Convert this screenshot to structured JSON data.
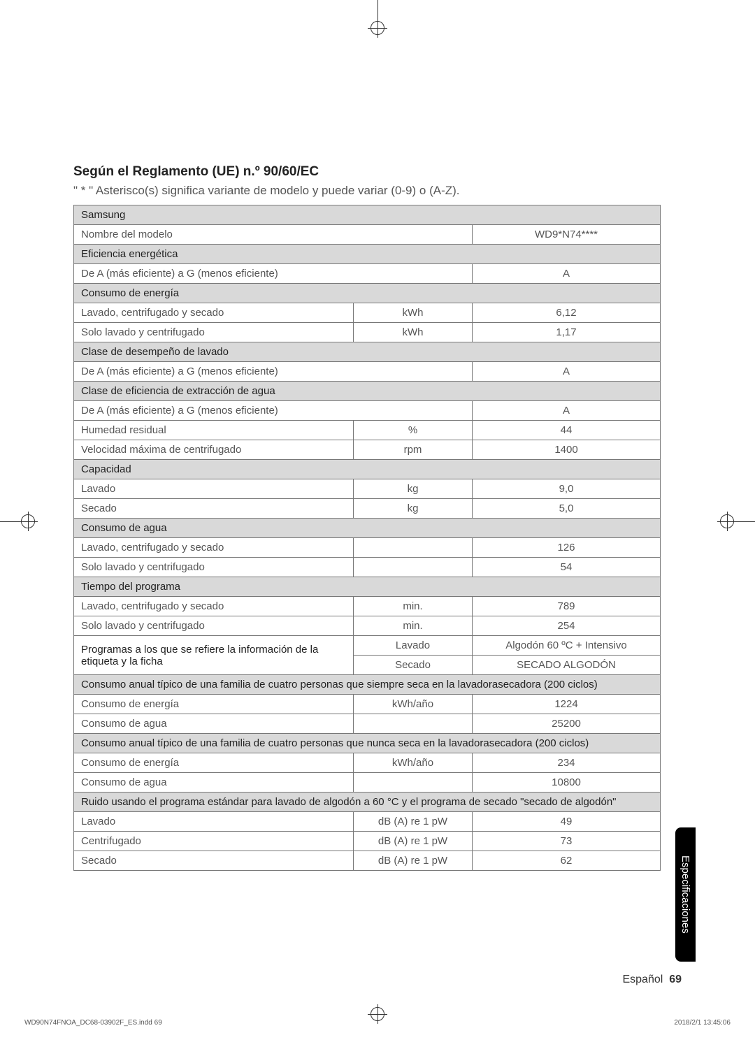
{
  "heading": "Según el Reglamento (UE) n.º 90/60/EC",
  "subtitle": "\" * \" Asterisco(s) significa variante de modelo y puede variar (0-9) o (A-Z).",
  "brand": "Samsung",
  "rows": {
    "model_label": "Nombre del modelo",
    "model_value": "WD9*N74****",
    "eff_header": "Eficiencia energética",
    "eff_scale": "De A (más eficiente) a G (menos eficiente)",
    "eff_value": "A",
    "energy_header": "Consumo de energía",
    "e_wash_spin_dry": "Lavado, centrifugado y secado",
    "e_wash_spin_dry_unit": "kWh",
    "e_wash_spin_dry_val": "6,12",
    "e_wash_spin": "Solo lavado y centrifugado",
    "e_wash_spin_unit": "kWh",
    "e_wash_spin_val": "1,17",
    "wash_class_header": "Clase de desempeño de lavado",
    "wash_class_scale": "De A (más eficiente) a G (menos eficiente)",
    "wash_class_val": "A",
    "extract_header": "Clase de eficiencia de extracción de agua",
    "extract_scale": "De A (más eficiente) a G (menos eficiente)",
    "extract_val": "A",
    "humidity_label": "Humedad residual",
    "humidity_unit": "%",
    "humidity_val": "44",
    "spin_label": "Velocidad máxima de centrifugado",
    "spin_unit": "rpm",
    "spin_val": "1400",
    "capacity_header": "Capacidad",
    "cap_wash": "Lavado",
    "cap_wash_unit": "kg",
    "cap_wash_val": "9,0",
    "cap_dry": "Secado",
    "cap_dry_unit": "kg",
    "cap_dry_val": "5,0",
    "water_header": "Consumo de agua",
    "w_wash_spin_dry": "Lavado, centrifugado y secado",
    "w_wash_spin_dry_val": "126",
    "w_wash_spin": "Solo lavado y centrifugado",
    "w_wash_spin_val": "54",
    "time_header": "Tiempo del programa",
    "t_wash_spin_dry": "Lavado, centrifugado y secado",
    "t_wash_spin_dry_unit": "min.",
    "t_wash_spin_dry_val": "789",
    "t_wash_spin": "Solo lavado y centrifugado",
    "t_wash_spin_unit": "min.",
    "t_wash_spin_val": "254",
    "prog_label": "Programas a los que se refiere la información de la etiqueta y la ficha",
    "prog_wash": "Lavado",
    "prog_wash_val": "Algodón 60 ºC + Intensivo",
    "prog_dry": "Secado",
    "prog_dry_val": "SECADO ALGODÓN",
    "annual_always_header": "Consumo anual típico de una familia de cuatro personas que siempre seca en la lavadorasecadora (200 ciclos)",
    "aa_energy": "Consumo de energía",
    "aa_energy_unit": "kWh/año",
    "aa_energy_val": "1224",
    "aa_water": "Consumo de agua",
    "aa_water_val": "25200",
    "annual_never_header": "Consumo anual típico de una familia de cuatro personas que nunca seca en la lavadorasecadora (200 ciclos)",
    "an_energy": "Consumo de energía",
    "an_energy_unit": "kWh/año",
    "an_energy_val": "234",
    "an_water": "Consumo de agua",
    "an_water_val": "10800",
    "noise_header": "Ruido usando el programa estándar para lavado de algodón a 60 °C y el programa de secado \"secado de algodón\"",
    "n_wash": "Lavado",
    "n_wash_unit": "dB (A) re 1 pW",
    "n_wash_val": "49",
    "n_spin": "Centrifugado",
    "n_spin_unit": "dB (A) re 1 pW",
    "n_spin_val": "73",
    "n_dry": "Secado",
    "n_dry_unit": "dB (A) re 1 pW",
    "n_dry_val": "62"
  },
  "side_tab": "Especificaciones",
  "page_lang": "Español",
  "page_no": "69",
  "footer_left": "WD90N74FNOA_DC68-03902F_ES.indd   69",
  "footer_right": "2018/2/1   13:45:06"
}
